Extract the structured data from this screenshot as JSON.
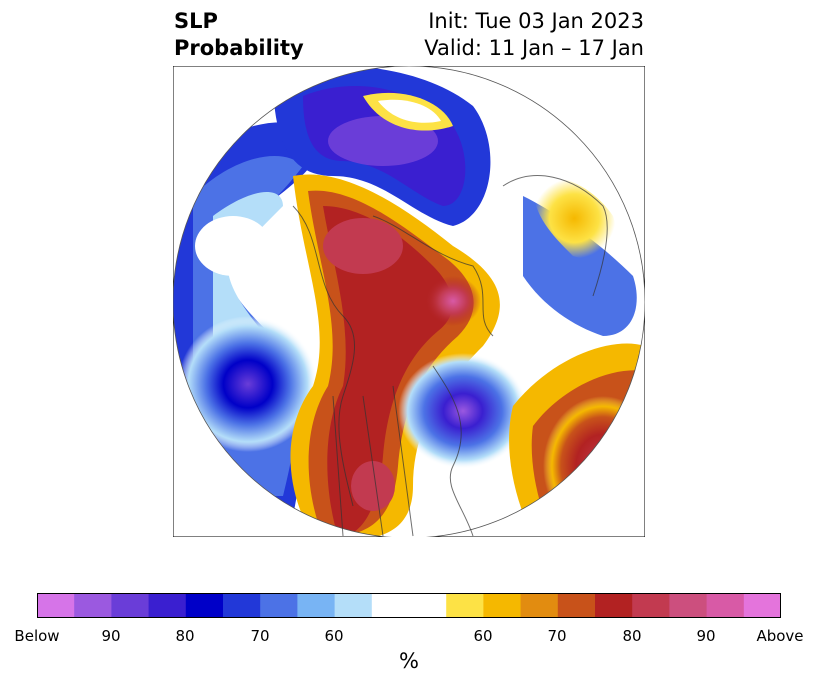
{
  "title": {
    "left_line1": "SLP",
    "left_line2": "Probability",
    "right_line1": "Init: Tue 03 Jan 2023",
    "right_line2": "Valid: 11 Jan – 17 Jan"
  },
  "colorbar": {
    "colors": [
      "#d674e8",
      "#9b59e0",
      "#6a3dd8",
      "#3a1fd0",
      "#0000c8",
      "#2238d8",
      "#4c72e6",
      "#78b4f4",
      "#b4def9",
      "#ffffff",
      "#ffffff",
      "#fde245",
      "#f5b800",
      "#e28c10",
      "#c8521a",
      "#b22222",
      "#c23a50",
      "#cc4f7e",
      "#d85aa6",
      "#e474dc"
    ],
    "ticks": [
      "Below",
      "90",
      "80",
      "70",
      "60",
      "60",
      "70",
      "80",
      "90",
      "Above"
    ],
    "unit": "%"
  }
}
